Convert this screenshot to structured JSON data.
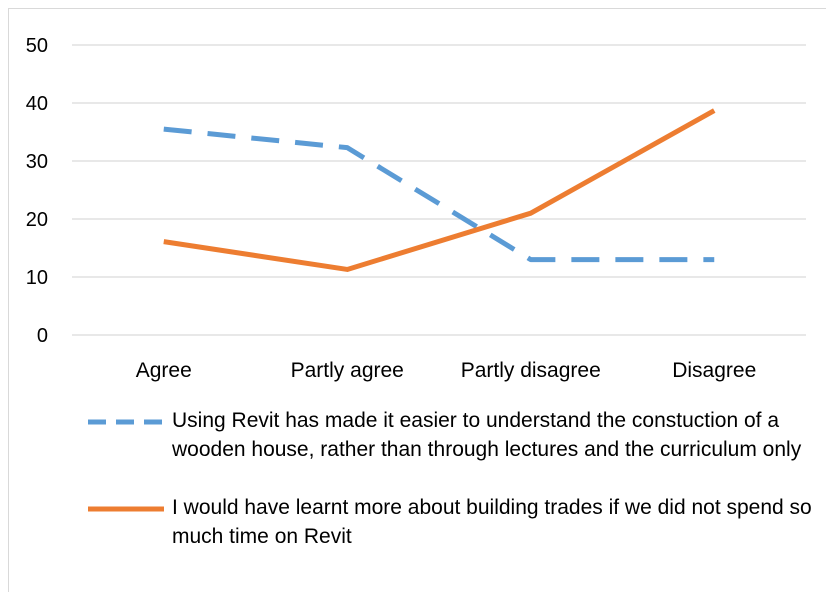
{
  "chart_data": {
    "type": "line",
    "categories": [
      "Agree",
      "Partly agree",
      "Partly disagree",
      "Disagree"
    ],
    "ylim": [
      0,
      50
    ],
    "yticks": [
      0,
      10,
      20,
      30,
      40,
      50
    ],
    "grid": true,
    "legend_position": "bottom",
    "series": [
      {
        "name": "Using Revit has made it easier to understand the constuction of a wooden house, rather than through lectures and the curriculum only",
        "values": [
          35.5,
          32.3,
          13.0,
          13.0
        ],
        "color": "#5b9bd5",
        "dash": "dashed"
      },
      {
        "name": "I would have learnt more about building trades if we did not spend so much time on Revit",
        "values": [
          16.1,
          11.3,
          21.0,
          38.7
        ],
        "color": "#ed7d31",
        "dash": "solid"
      }
    ]
  }
}
